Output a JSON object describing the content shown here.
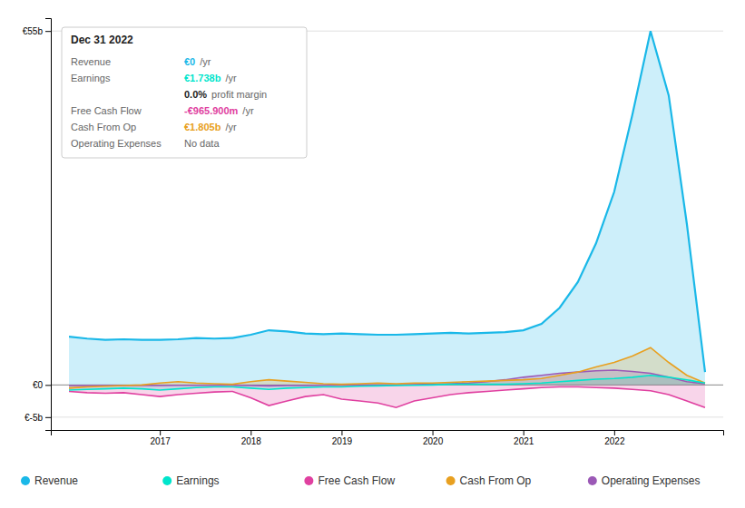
{
  "chart_data": {
    "type": "area",
    "x": [
      2016.0,
      2016.2,
      2016.4,
      2016.6,
      2016.8,
      2017.0,
      2017.2,
      2017.4,
      2017.6,
      2017.8,
      2018.0,
      2018.2,
      2018.4,
      2018.6,
      2018.8,
      2019.0,
      2019.2,
      2019.4,
      2019.6,
      2019.8,
      2020.0,
      2020.2,
      2020.4,
      2020.6,
      2020.8,
      2021.0,
      2021.2,
      2021.4,
      2021.6,
      2021.8,
      2022.0,
      2022.2,
      2022.4,
      2022.6,
      2022.8,
      2023.0
    ],
    "series": [
      {
        "name": "Revenue",
        "color": "#1ab8e8",
        "values": [
          7.5,
          7.2,
          7.0,
          7.1,
          7.0,
          7.0,
          7.1,
          7.3,
          7.2,
          7.3,
          7.8,
          8.5,
          8.3,
          8.0,
          7.9,
          8.0,
          7.9,
          7.8,
          7.8,
          7.9,
          8.0,
          8.1,
          8.0,
          8.1,
          8.2,
          8.5,
          9.5,
          12.0,
          16.0,
          22.0,
          30.0,
          42.0,
          55.0,
          45.0,
          25.0,
          2.0
        ]
      },
      {
        "name": "Earnings",
        "color": "#00e5cc",
        "values": [
          -0.8,
          -0.7,
          -0.6,
          -0.5,
          -0.6,
          -0.8,
          -0.6,
          -0.4,
          -0.3,
          -0.3,
          -0.5,
          -0.7,
          -0.5,
          -0.4,
          -0.3,
          -0.3,
          -0.2,
          -0.15,
          -0.1,
          -0.05,
          0.0,
          0.1,
          0.1,
          0.1,
          0.1,
          0.2,
          0.3,
          0.5,
          0.7,
          0.9,
          1.0,
          1.2,
          1.5,
          1.2,
          0.8,
          0.3
        ]
      },
      {
        "name": "Free Cash Flow",
        "color": "#e040a0",
        "values": [
          -1.0,
          -1.2,
          -1.3,
          -1.2,
          -1.5,
          -1.8,
          -1.5,
          -1.3,
          -1.1,
          -1.0,
          -2.0,
          -3.2,
          -2.5,
          -1.8,
          -1.5,
          -2.2,
          -2.5,
          -2.8,
          -3.5,
          -2.5,
          -2.0,
          -1.5,
          -1.2,
          -1.0,
          -0.8,
          -0.6,
          -0.4,
          -0.3,
          -0.3,
          -0.4,
          -0.5,
          -0.7,
          -0.9,
          -1.5,
          -2.5,
          -3.5
        ]
      },
      {
        "name": "Cash From Op",
        "color": "#e8a020",
        "values": [
          -0.5,
          -0.3,
          -0.2,
          -0.1,
          0.0,
          0.3,
          0.5,
          0.3,
          0.2,
          0.1,
          0.5,
          0.8,
          0.6,
          0.4,
          0.2,
          0.1,
          0.2,
          0.3,
          0.2,
          0.3,
          0.3,
          0.4,
          0.5,
          0.6,
          0.7,
          0.8,
          1.0,
          1.5,
          2.0,
          2.8,
          3.5,
          4.5,
          5.8,
          3.5,
          1.5,
          0.3
        ]
      },
      {
        "name": "Operating Expenses",
        "color": "#9b59b6",
        "values": [
          -0.1,
          -0.1,
          -0.1,
          -0.1,
          -0.1,
          -0.1,
          -0.05,
          -0.05,
          -0.05,
          -0.05,
          -0.1,
          -0.15,
          -0.1,
          -0.1,
          -0.05,
          -0.05,
          0.0,
          0.0,
          0.0,
          0.05,
          0.1,
          0.2,
          0.3,
          0.5,
          0.8,
          1.2,
          1.5,
          1.8,
          2.0,
          2.2,
          2.3,
          2.1,
          1.8,
          1.2,
          0.5,
          0.2
        ]
      }
    ],
    "xlim": [
      2015.8,
      2023.2
    ],
    "xticks": [
      2017,
      2018,
      2019,
      2020,
      2021,
      2022
    ],
    "ylim": [
      -7,
      57
    ],
    "yticks": [
      {
        "value": -5,
        "label": "€-5b"
      },
      {
        "value": 0,
        "label": "€0"
      },
      {
        "value": 55,
        "label": "€55b"
      }
    ],
    "grid": true,
    "legend": "bottom",
    "annotations": [
      {
        "title": "Dec 31 2022",
        "rows": [
          [
            "Revenue",
            "€0",
            "/yr"
          ],
          [
            "Earnings",
            "€1.738b",
            "/yr"
          ],
          [
            null,
            "0.0%",
            "profit margin"
          ],
          [
            "Free Cash Flow",
            "-€965.900m",
            "/yr"
          ],
          [
            "Cash From Op",
            "€1.805b",
            "/yr"
          ],
          [
            "Operating Expenses",
            "No data"
          ]
        ]
      }
    ]
  }
}
